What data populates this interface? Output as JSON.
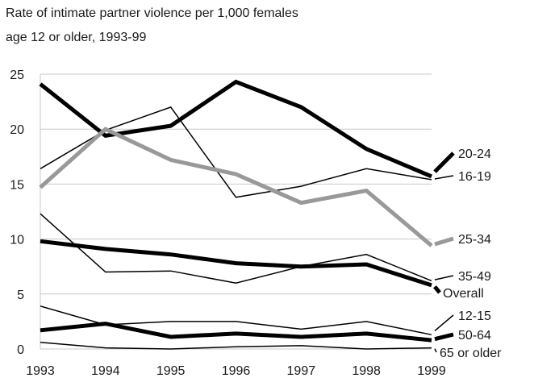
{
  "chart_data": {
    "type": "line",
    "title_lines": [
      "Rate of intimate partner violence per 1,000 females",
      "age 12 or older, 1993-99"
    ],
    "xlabel": "",
    "ylabel": "",
    "x": [
      1993,
      1994,
      1995,
      1996,
      1997,
      1998,
      1999
    ],
    "ylim": [
      0,
      25
    ],
    "yticks": [
      0,
      5,
      10,
      15,
      20,
      25
    ],
    "grid": true,
    "legend": "right-end labels",
    "series": [
      {
        "name": "20-24",
        "color": "#000000",
        "width": "thick",
        "values": [
          24.1,
          19.4,
          20.3,
          24.3,
          22.0,
          18.2,
          15.7
        ]
      },
      {
        "name": "16-19",
        "color": "#000000",
        "width": "thin",
        "values": [
          16.4,
          19.9,
          22.0,
          13.8,
          14.8,
          16.4,
          15.4
        ]
      },
      {
        "name": "25-34",
        "color": "#999999",
        "width": "thick",
        "values": [
          14.7,
          20.0,
          17.2,
          15.9,
          13.3,
          14.4,
          9.4
        ]
      },
      {
        "name": "35-49",
        "color": "#000000",
        "width": "thin",
        "values": [
          12.3,
          7.0,
          7.1,
          6.0,
          7.5,
          8.6,
          6.2
        ]
      },
      {
        "name": "Overall",
        "color": "#000000",
        "width": "thick",
        "values": [
          9.8,
          9.1,
          8.6,
          7.8,
          7.5,
          7.7,
          5.8
        ]
      },
      {
        "name": "12-15",
        "color": "#000000",
        "width": "thin",
        "values": [
          3.9,
          2.2,
          2.5,
          2.5,
          1.8,
          2.5,
          1.3
        ]
      },
      {
        "name": "50-64",
        "color": "#000000",
        "width": "thick",
        "values": [
          1.7,
          2.3,
          1.1,
          1.4,
          1.1,
          1.4,
          0.8
        ]
      },
      {
        "name": "65 or older",
        "color": "#000000",
        "width": "thin",
        "values": [
          0.6,
          0.1,
          0.0,
          0.2,
          0.3,
          0.0,
          0.1
        ]
      }
    ]
  }
}
